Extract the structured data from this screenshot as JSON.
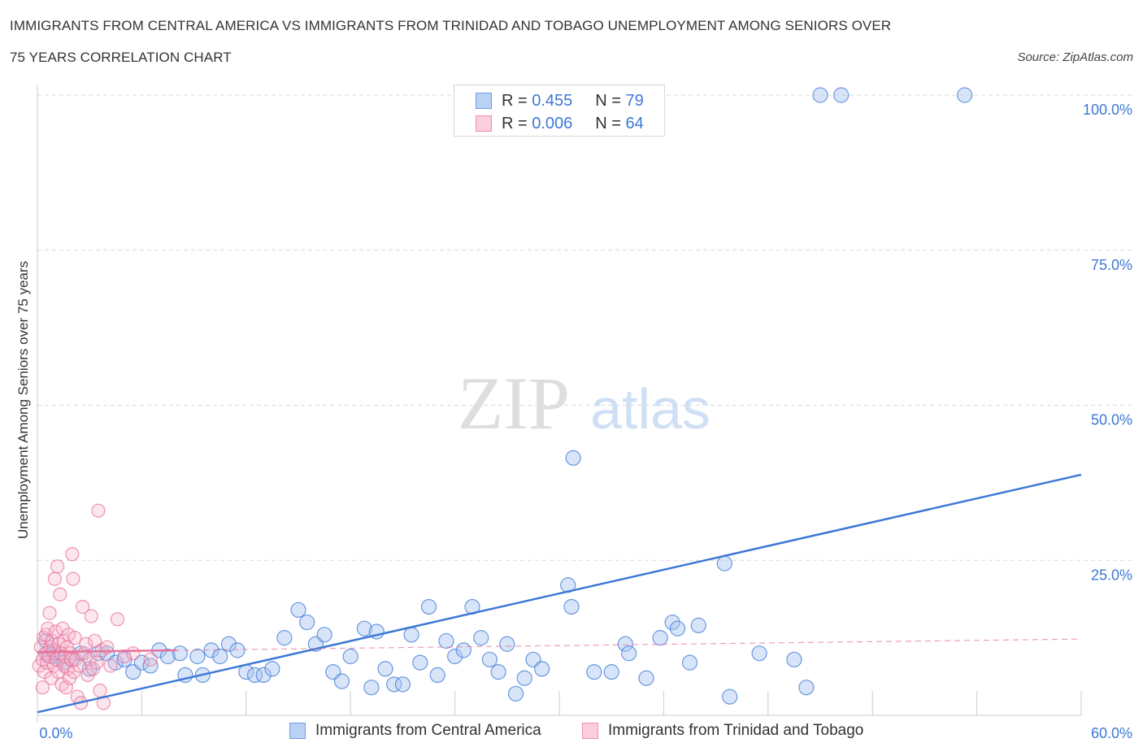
{
  "header": {
    "title_line1": "IMMIGRANTS FROM CENTRAL AMERICA VS IMMIGRANTS FROM TRINIDAD AND TOBAGO UNEMPLOYMENT AMONG SENIORS OVER",
    "title_line2": "75 YEARS CORRELATION CHART",
    "source": "Source: ZipAtlas.com"
  },
  "legend": {
    "rows": [
      {
        "r_label": "R =",
        "r_value": "0.455",
        "n_label": "N =",
        "n_value": "79"
      },
      {
        "r_label": "R =",
        "r_value": "0.006",
        "n_label": "N =",
        "n_value": "64"
      }
    ]
  },
  "watermark": {
    "zip": "ZIP",
    "atlas": "atlas"
  },
  "colors": {
    "blue": "#3d78d6",
    "blue_fill": "#a9c6f2",
    "pink": "#e8729b",
    "pink_fill": "#f6b7cc",
    "grid": "#d9d9d9",
    "tick_label": "#3d78d6"
  },
  "chart_data": {
    "type": "scatter",
    "title": "IMMIGRANTS FROM CENTRAL AMERICA VS IMMIGRANTS FROM TRINIDAD AND TOBAGO UNEMPLOYMENT AMONG SENIORS OVER 75 YEARS CORRELATION CHART",
    "ylabel": "Unemployment Among Seniors over 75 years",
    "xlabel": "",
    "xlim": [
      0,
      60
    ],
    "ylim": [
      0,
      100
    ],
    "x_tick_labels": [
      "0.0%",
      "60.0%"
    ],
    "y_tick_labels": [
      "100.0%",
      "75.0%",
      "50.0%",
      "25.0%"
    ],
    "y_ticks": [
      100,
      75,
      50,
      25
    ],
    "grid": true,
    "legend_position": "top-center",
    "series": [
      {
        "name": "Immigrants from Central America",
        "color": "#3d78d6",
        "r": 0.455,
        "n": 79,
        "trend": {
          "x": [
            0,
            60
          ],
          "y": [
            0.5,
            38.8
          ],
          "style": "solid"
        },
        "points": [
          [
            0.5,
            12
          ],
          [
            0.6,
            10
          ],
          [
            0.8,
            9.5
          ],
          [
            1.0,
            10
          ],
          [
            1.2,
            9.5
          ],
          [
            1.5,
            8.5
          ],
          [
            2.0,
            9
          ],
          [
            2.5,
            10
          ],
          [
            3,
            7.5
          ],
          [
            3.5,
            10
          ],
          [
            4,
            10
          ],
          [
            4.5,
            8.5
          ],
          [
            5,
            9
          ],
          [
            5.5,
            7
          ],
          [
            6,
            8.5
          ],
          [
            6.5,
            8
          ],
          [
            7,
            10.5
          ],
          [
            7.5,
            9.5
          ],
          [
            8.2,
            10
          ],
          [
            8.5,
            6.5
          ],
          [
            9.2,
            9.5
          ],
          [
            9.5,
            6.5
          ],
          [
            10,
            10.5
          ],
          [
            10.5,
            9.5
          ],
          [
            11,
            11.5
          ],
          [
            11.5,
            10.5
          ],
          [
            12,
            7
          ],
          [
            12.5,
            6.5
          ],
          [
            13,
            6.5
          ],
          [
            13.5,
            7.5
          ],
          [
            14.2,
            12.5
          ],
          [
            15,
            17
          ],
          [
            15.5,
            15
          ],
          [
            16,
            11.5
          ],
          [
            16.5,
            13
          ],
          [
            17,
            7
          ],
          [
            17.5,
            5.5
          ],
          [
            18,
            9.5
          ],
          [
            18.8,
            14
          ],
          [
            19.2,
            4.5
          ],
          [
            19.5,
            13.5
          ],
          [
            20,
            7.5
          ],
          [
            20.5,
            5
          ],
          [
            21,
            5
          ],
          [
            21.5,
            13
          ],
          [
            22,
            8.5
          ],
          [
            22.5,
            17.5
          ],
          [
            23,
            6.5
          ],
          [
            23.5,
            12
          ],
          [
            24,
            9.5
          ],
          [
            24.5,
            10.5
          ],
          [
            25,
            17.5
          ],
          [
            25.5,
            12.5
          ],
          [
            26,
            9
          ],
          [
            26.5,
            7
          ],
          [
            27,
            11.5
          ],
          [
            27.5,
            3.5
          ],
          [
            28,
            6
          ],
          [
            28.5,
            9
          ],
          [
            29,
            7.5
          ],
          [
            30.5,
            21
          ],
          [
            30.7,
            17.5
          ],
          [
            30.8,
            41.5
          ],
          [
            32,
            7
          ],
          [
            33,
            7
          ],
          [
            33.8,
            11.5
          ],
          [
            34,
            10
          ],
          [
            35,
            6
          ],
          [
            35.8,
            12.5
          ],
          [
            36.5,
            15
          ],
          [
            36.8,
            14
          ],
          [
            37.5,
            8.5
          ],
          [
            38,
            14.5
          ],
          [
            39.5,
            24.5
          ],
          [
            39.8,
            3
          ],
          [
            41.5,
            10
          ],
          [
            43.5,
            9
          ],
          [
            44.2,
            4.5
          ],
          [
            45,
            100
          ],
          [
            46.2,
            100
          ],
          [
            53.3,
            100
          ]
        ]
      },
      {
        "name": "Immigrants from Trinidad and Tobago",
        "color": "#e8729b",
        "r": 0.006,
        "n": 64,
        "trend": {
          "x": [
            0,
            60
          ],
          "y": [
            10.2,
            12.3
          ],
          "style": "dashed",
          "solid_x": [
            0,
            8
          ]
        },
        "points": [
          [
            0.1,
            8
          ],
          [
            0.2,
            11
          ],
          [
            0.3,
            9
          ],
          [
            0.35,
            12.5
          ],
          [
            0.4,
            7
          ],
          [
            0.45,
            10
          ],
          [
            0.5,
            13
          ],
          [
            0.55,
            8.5
          ],
          [
            0.6,
            14
          ],
          [
            0.65,
            9.5
          ],
          [
            0.7,
            16.5
          ],
          [
            0.75,
            11
          ],
          [
            0.8,
            6
          ],
          [
            0.85,
            12
          ],
          [
            0.9,
            10.5
          ],
          [
            0.95,
            8
          ],
          [
            1.0,
            22
          ],
          [
            1.05,
            13.5
          ],
          [
            1.1,
            9
          ],
          [
            1.15,
            24
          ],
          [
            1.2,
            7
          ],
          [
            1.25,
            11.5
          ],
          [
            1.3,
            19.5
          ],
          [
            1.35,
            10
          ],
          [
            1.4,
            5
          ],
          [
            1.45,
            14
          ],
          [
            1.5,
            12
          ],
          [
            1.55,
            8
          ],
          [
            1.6,
            9.5
          ],
          [
            1.65,
            4.5
          ],
          [
            1.7,
            11
          ],
          [
            1.75,
            7.5
          ],
          [
            1.8,
            13
          ],
          [
            1.85,
            6
          ],
          [
            1.9,
            10
          ],
          [
            1.95,
            9
          ],
          [
            2.0,
            26
          ],
          [
            2.05,
            22
          ],
          [
            2.1,
            7
          ],
          [
            2.15,
            12.5
          ],
          [
            2.2,
            9
          ],
          [
            2.3,
            3
          ],
          [
            2.4,
            8
          ],
          [
            2.5,
            2
          ],
          [
            2.6,
            17.5
          ],
          [
            2.7,
            10
          ],
          [
            2.8,
            11.5
          ],
          [
            2.9,
            6.5
          ],
          [
            3.0,
            9
          ],
          [
            3.1,
            16
          ],
          [
            3.2,
            7.5
          ],
          [
            3.3,
            12
          ],
          [
            3.4,
            8.5
          ],
          [
            3.5,
            33
          ],
          [
            3.6,
            4
          ],
          [
            3.7,
            10.5
          ],
          [
            3.8,
            2
          ],
          [
            4.0,
            11
          ],
          [
            4.2,
            8
          ],
          [
            4.6,
            15.5
          ],
          [
            5.0,
            9.5
          ],
          [
            5.5,
            10
          ],
          [
            6.5,
            9
          ],
          [
            0.3,
            4.5
          ]
        ]
      }
    ]
  },
  "bottom_legend": [
    {
      "label": "Immigrants from Central America"
    },
    {
      "label": "Immigrants from Trinidad and Tobago"
    }
  ]
}
